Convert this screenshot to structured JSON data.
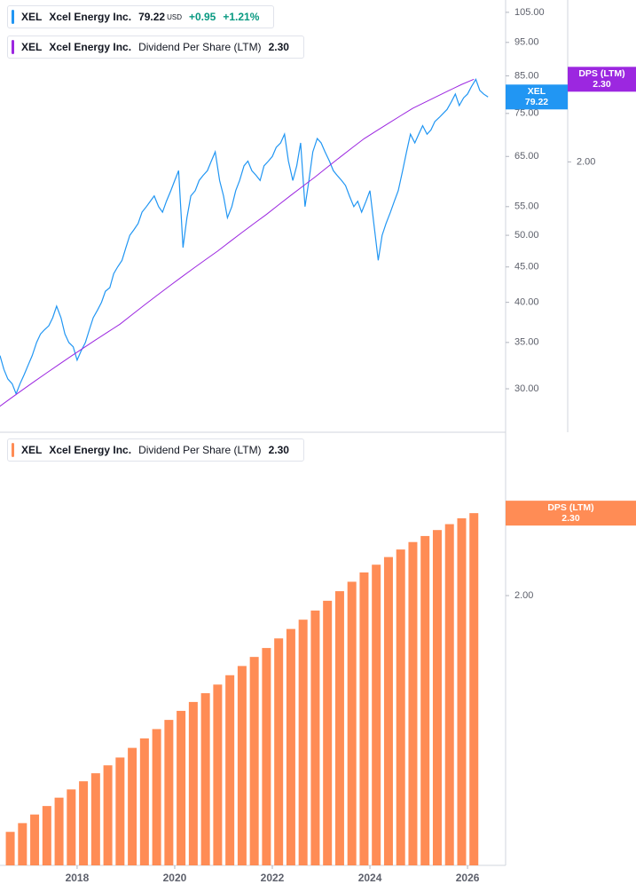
{
  "chart_data": [
    {
      "type": "line",
      "symbol": "XEL",
      "company": "Xcel Energy Inc.",
      "currency": "USD",
      "change": "+0.95",
      "change_percent": "+1.21%",
      "change_color": "#089981",
      "log_scale": true,
      "xlim": [
        2016.42,
        2026.78
      ],
      "ylim": [
        25.96,
        109.4
      ],
      "yticks": [
        {
          "value": 30,
          "label": "30.00"
        },
        {
          "value": 35,
          "label": "35.00"
        },
        {
          "value": 40,
          "label": "40.00"
        },
        {
          "value": 45,
          "label": "45.00"
        },
        {
          "value": 50,
          "label": "50.00"
        },
        {
          "value": 55,
          "label": "55.00"
        },
        {
          "value": 65,
          "label": "65.00"
        },
        {
          "value": 75,
          "label": "75.00"
        },
        {
          "value": 85,
          "label": "85.00"
        },
        {
          "value": 95,
          "label": "95.00"
        },
        {
          "value": 105,
          "label": "105.00"
        }
      ],
      "y2lim": [
        1.266,
        2.63
      ],
      "y2ticks": [
        {
          "value": 2,
          "label": "2.00"
        }
      ],
      "series": [
        {
          "name": "XEL",
          "color": "#2196f3",
          "last_label": "79.22",
          "x": [
            2016.42,
            2016.5,
            2016.58,
            2016.67,
            2016.75,
            2016.83,
            2016.92,
            2017,
            2017.08,
            2017.17,
            2017.25,
            2017.33,
            2017.42,
            2017.5,
            2017.58,
            2017.67,
            2017.75,
            2017.83,
            2017.92,
            2018,
            2018.08,
            2018.17,
            2018.25,
            2018.33,
            2018.42,
            2018.5,
            2018.58,
            2018.67,
            2018.75,
            2018.83,
            2018.92,
            2019,
            2019.08,
            2019.17,
            2019.25,
            2019.33,
            2019.42,
            2019.5,
            2019.58,
            2019.67,
            2019.75,
            2019.83,
            2019.92,
            2020,
            2020.08,
            2020.17,
            2020.25,
            2020.33,
            2020.42,
            2020.5,
            2020.58,
            2020.67,
            2020.75,
            2020.83,
            2020.92,
            2021,
            2021.08,
            2021.17,
            2021.25,
            2021.33,
            2021.42,
            2021.5,
            2021.58,
            2021.67,
            2021.75,
            2021.83,
            2021.92,
            2022,
            2022.08,
            2022.17,
            2022.25,
            2022.33,
            2022.42,
            2022.5,
            2022.58,
            2022.67,
            2022.75,
            2022.83,
            2022.92,
            2023,
            2023.08,
            2023.17,
            2023.25,
            2023.33,
            2023.42,
            2023.5,
            2023.58,
            2023.67,
            2023.75,
            2023.83,
            2023.92,
            2024,
            2024.08,
            2024.17,
            2024.25,
            2024.33,
            2024.42,
            2024.5,
            2024.58,
            2024.67,
            2024.75,
            2024.83,
            2024.92,
            2025,
            2025.08,
            2025.17,
            2025.25,
            2025.33,
            2025.42,
            2025.5,
            2025.58,
            2025.67,
            2025.75,
            2025.83,
            2025.92,
            2026,
            2026.08,
            2026.17,
            2026.25,
            2026.33,
            2026.42
          ],
          "values": [
            33.5,
            32,
            31,
            30.5,
            29.5,
            30.5,
            31.5,
            32.5,
            33.5,
            35,
            36,
            36.5,
            37,
            38,
            39.5,
            38,
            36,
            35,
            34.5,
            33,
            34,
            35,
            36.5,
            38,
            39,
            40,
            41.5,
            42,
            44,
            45,
            46,
            48,
            50,
            51,
            52,
            54,
            55,
            56,
            57,
            55,
            54,
            56,
            58,
            60,
            62,
            48,
            53,
            57,
            58,
            60,
            61,
            62,
            64,
            66,
            60,
            57,
            53,
            55,
            58,
            60,
            63,
            64,
            62,
            61,
            60,
            63,
            64,
            65,
            67,
            68,
            70,
            64,
            60,
            63,
            68,
            55,
            60,
            66,
            69,
            68,
            66,
            64,
            62,
            61,
            60,
            59,
            57,
            55,
            56,
            54,
            56,
            58,
            52,
            46,
            50,
            52,
            54,
            56,
            58,
            62,
            66,
            70,
            68,
            70,
            72,
            70,
            71,
            73,
            74,
            75,
            76,
            78,
            80,
            77,
            79,
            80,
            82,
            84,
            81,
            80,
            79.22
          ]
        },
        {
          "name": "Dividend Per Share (LTM)",
          "short_name": "DPS (LTM)",
          "color": "#9c27e0",
          "axis": "y2",
          "last_label": "2.30",
          "x": [
            2016.38,
            2016.63,
            2016.88,
            2017.13,
            2017.38,
            2017.63,
            2017.88,
            2018.13,
            2018.38,
            2018.63,
            2018.88,
            2019.13,
            2019.38,
            2019.63,
            2019.88,
            2020.13,
            2020.38,
            2020.63,
            2020.88,
            2021.13,
            2021.38,
            2021.63,
            2021.88,
            2022.13,
            2022.38,
            2022.63,
            2022.88,
            2023.13,
            2023.38,
            2023.63,
            2023.88,
            2024.13,
            2024.38,
            2024.63,
            2024.88,
            2025.13,
            2025.38,
            2025.63,
            2025.88,
            2026.13
          ],
          "values": [
            1.32,
            1.34,
            1.36,
            1.38,
            1.4,
            1.42,
            1.44,
            1.46,
            1.48,
            1.5,
            1.52,
            1.545,
            1.57,
            1.595,
            1.62,
            1.645,
            1.67,
            1.695,
            1.72,
            1.7475,
            1.775,
            1.8025,
            1.83,
            1.86,
            1.89,
            1.92,
            1.95,
            1.9825,
            2.015,
            2.0475,
            2.08,
            2.1075,
            2.135,
            2.1625,
            2.19,
            2.2125,
            2.235,
            2.2575,
            2.28,
            2.3
          ]
        }
      ]
    },
    {
      "type": "bar",
      "symbol": "XEL",
      "company": "Xcel Energy Inc.",
      "log_scale": true,
      "xlim": [
        2016.42,
        2026.78
      ],
      "xticks": [
        2018,
        2020,
        2022,
        2024,
        2026
      ],
      "ylim": [
        1.266,
        2.638
      ],
      "yticks": [
        {
          "value": 2,
          "label": "2.00"
        }
      ],
      "series": [
        {
          "name": "Dividend Per Share (LTM)",
          "short_name": "DPS (LTM)",
          "color": "#ff8c55",
          "last_label": "2.30",
          "x": [
            2016.63,
            2016.88,
            2017.13,
            2017.38,
            2017.63,
            2017.88,
            2018.13,
            2018.38,
            2018.63,
            2018.88,
            2019.13,
            2019.38,
            2019.63,
            2019.88,
            2020.13,
            2020.38,
            2020.63,
            2020.88,
            2021.13,
            2021.38,
            2021.63,
            2021.88,
            2022.13,
            2022.38,
            2022.63,
            2022.88,
            2023.13,
            2023.38,
            2023.63,
            2023.88,
            2024.13,
            2024.38,
            2024.63,
            2024.88,
            2025.13,
            2025.38,
            2025.63,
            2025.88,
            2026.13
          ],
          "values": [
            1.34,
            1.36,
            1.38,
            1.4,
            1.42,
            1.44,
            1.46,
            1.48,
            1.5,
            1.52,
            1.545,
            1.57,
            1.595,
            1.62,
            1.645,
            1.67,
            1.695,
            1.72,
            1.7475,
            1.775,
            1.8025,
            1.83,
            1.86,
            1.89,
            1.92,
            1.95,
            1.9825,
            2.015,
            2.0475,
            2.08,
            2.1075,
            2.135,
            2.1625,
            2.19,
            2.2125,
            2.235,
            2.2575,
            2.28,
            2.3
          ]
        }
      ]
    }
  ]
}
